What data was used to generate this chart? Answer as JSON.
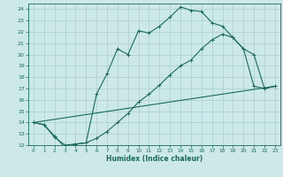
{
  "xlabel": "Humidex (Indice chaleur)",
  "bg_color": "#cce8e8",
  "line_color": "#1a6b5a",
  "grid_color": "#aacece",
  "xlim": [
    -0.5,
    23.5
  ],
  "ylim": [
    12,
    24.5
  ],
  "xticks": [
    0,
    1,
    2,
    3,
    4,
    5,
    6,
    7,
    8,
    9,
    10,
    11,
    12,
    13,
    14,
    15,
    16,
    17,
    18,
    19,
    20,
    21,
    22,
    23
  ],
  "yticks": [
    12,
    13,
    14,
    15,
    16,
    17,
    18,
    19,
    20,
    21,
    22,
    23,
    24
  ],
  "line1_x": [
    0,
    1,
    2,
    3,
    4,
    5,
    6,
    7,
    8,
    9,
    10,
    11,
    12,
    13,
    14,
    15,
    16,
    17,
    18,
    19,
    20,
    21,
    22,
    23
  ],
  "line1_y": [
    14.0,
    13.8,
    12.8,
    11.8,
    12.1,
    12.2,
    16.5,
    18.3,
    20.5,
    20.0,
    22.1,
    21.9,
    22.5,
    23.3,
    24.2,
    23.9,
    23.8,
    22.8,
    22.5,
    21.5,
    20.5,
    20.0,
    17.0,
    17.2
  ],
  "line2_x": [
    0,
    1,
    2,
    3,
    4,
    5,
    6,
    7,
    8,
    9,
    10,
    11,
    12,
    13,
    14,
    15,
    16,
    17,
    18,
    19,
    20,
    21,
    22,
    23
  ],
  "line2_y": [
    14.0,
    13.8,
    12.7,
    12.0,
    12.1,
    12.2,
    12.6,
    13.2,
    14.0,
    14.8,
    15.8,
    16.5,
    17.3,
    18.2,
    19.0,
    19.5,
    20.5,
    21.3,
    21.8,
    21.5,
    20.5,
    17.2,
    17.0,
    17.2
  ],
  "line3_x": [
    0,
    23
  ],
  "line3_y": [
    14.0,
    17.2
  ]
}
